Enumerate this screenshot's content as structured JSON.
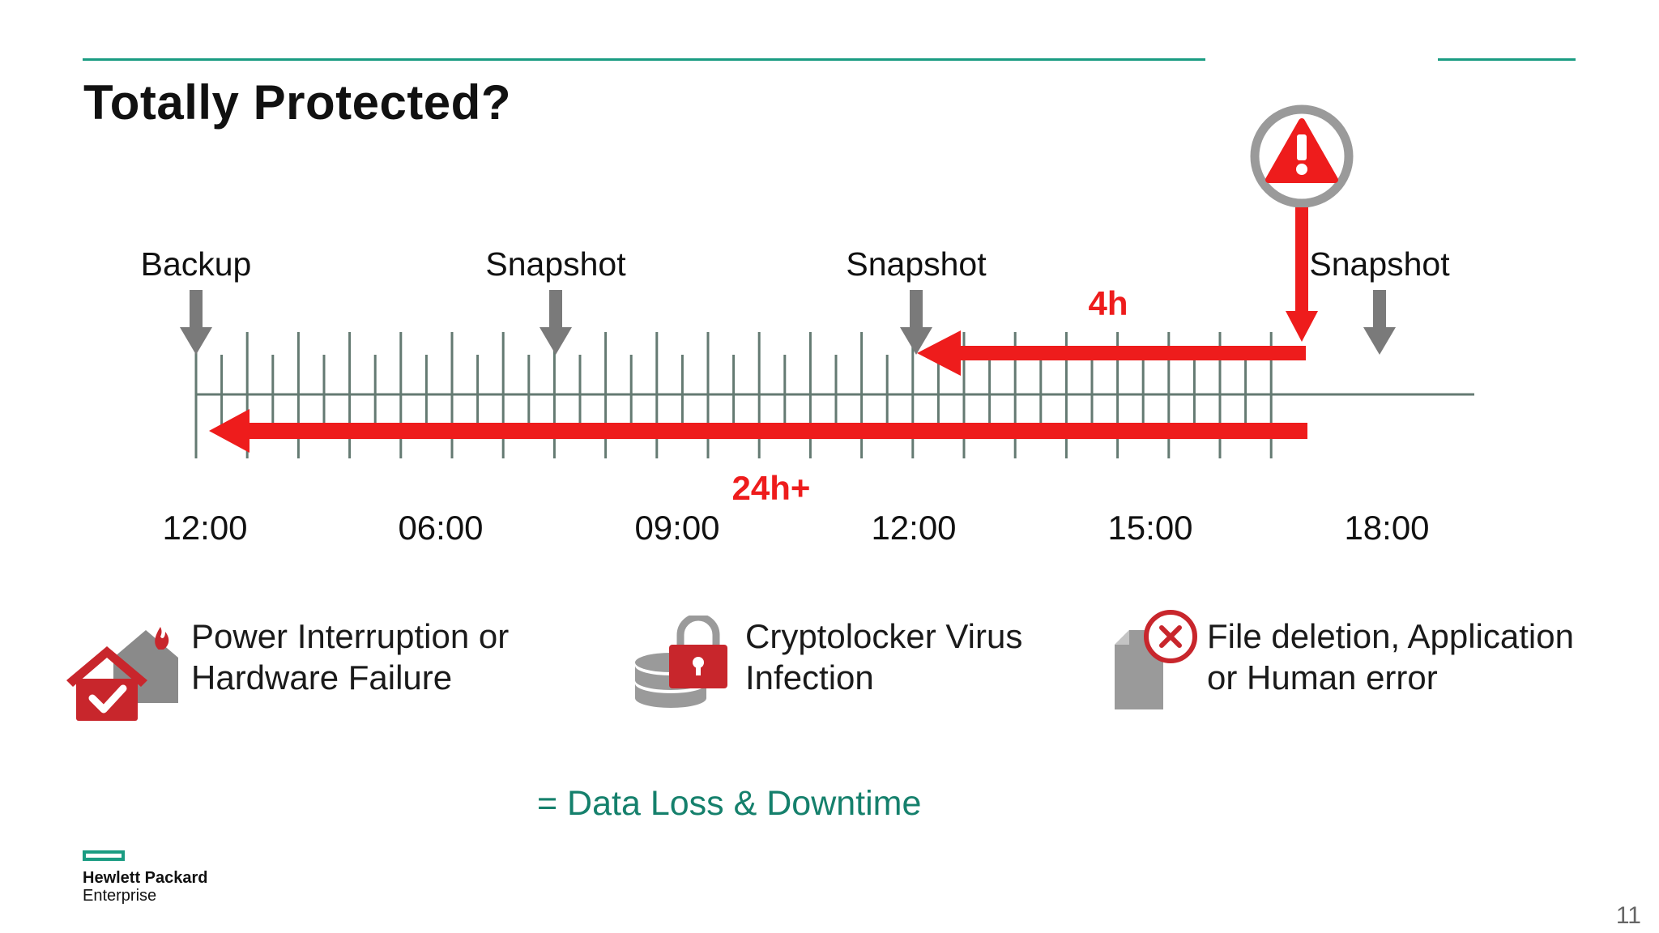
{
  "slide": {
    "title": "Totally Protected?",
    "page_number": "11",
    "accent_color": "#1a9c82",
    "alert_color": "#ee1c1c"
  },
  "timeline": {
    "events": [
      {
        "label": "Backup",
        "icon": "arrow-down-icon"
      },
      {
        "label": "Snapshot",
        "icon": "arrow-down-icon"
      },
      {
        "label": "Snapshot",
        "icon": "arrow-down-icon"
      },
      {
        "label": "Snapshot",
        "icon": "arrow-down-icon"
      }
    ],
    "time_labels": [
      "12:00",
      "06:00",
      "09:00",
      "12:00",
      "15:00",
      "18:00"
    ],
    "failure_icon": "warning-icon",
    "short_loss_label": "4h",
    "long_loss_label": "24h+"
  },
  "scenarios": [
    {
      "icon": "house-fire-icon",
      "line1": "Power Interruption or",
      "line2": "Hardware Failure"
    },
    {
      "icon": "locked-database-icon",
      "line1": "Cryptolocker Virus",
      "line2": "Infection"
    },
    {
      "icon": "deleted-file-icon",
      "line1": "File deletion, Application",
      "line2": "or Human error"
    }
  ],
  "result_text": "= Data Loss & Downtime",
  "logo": {
    "line1": "Hewlett Packard",
    "line2": "Enterprise"
  }
}
